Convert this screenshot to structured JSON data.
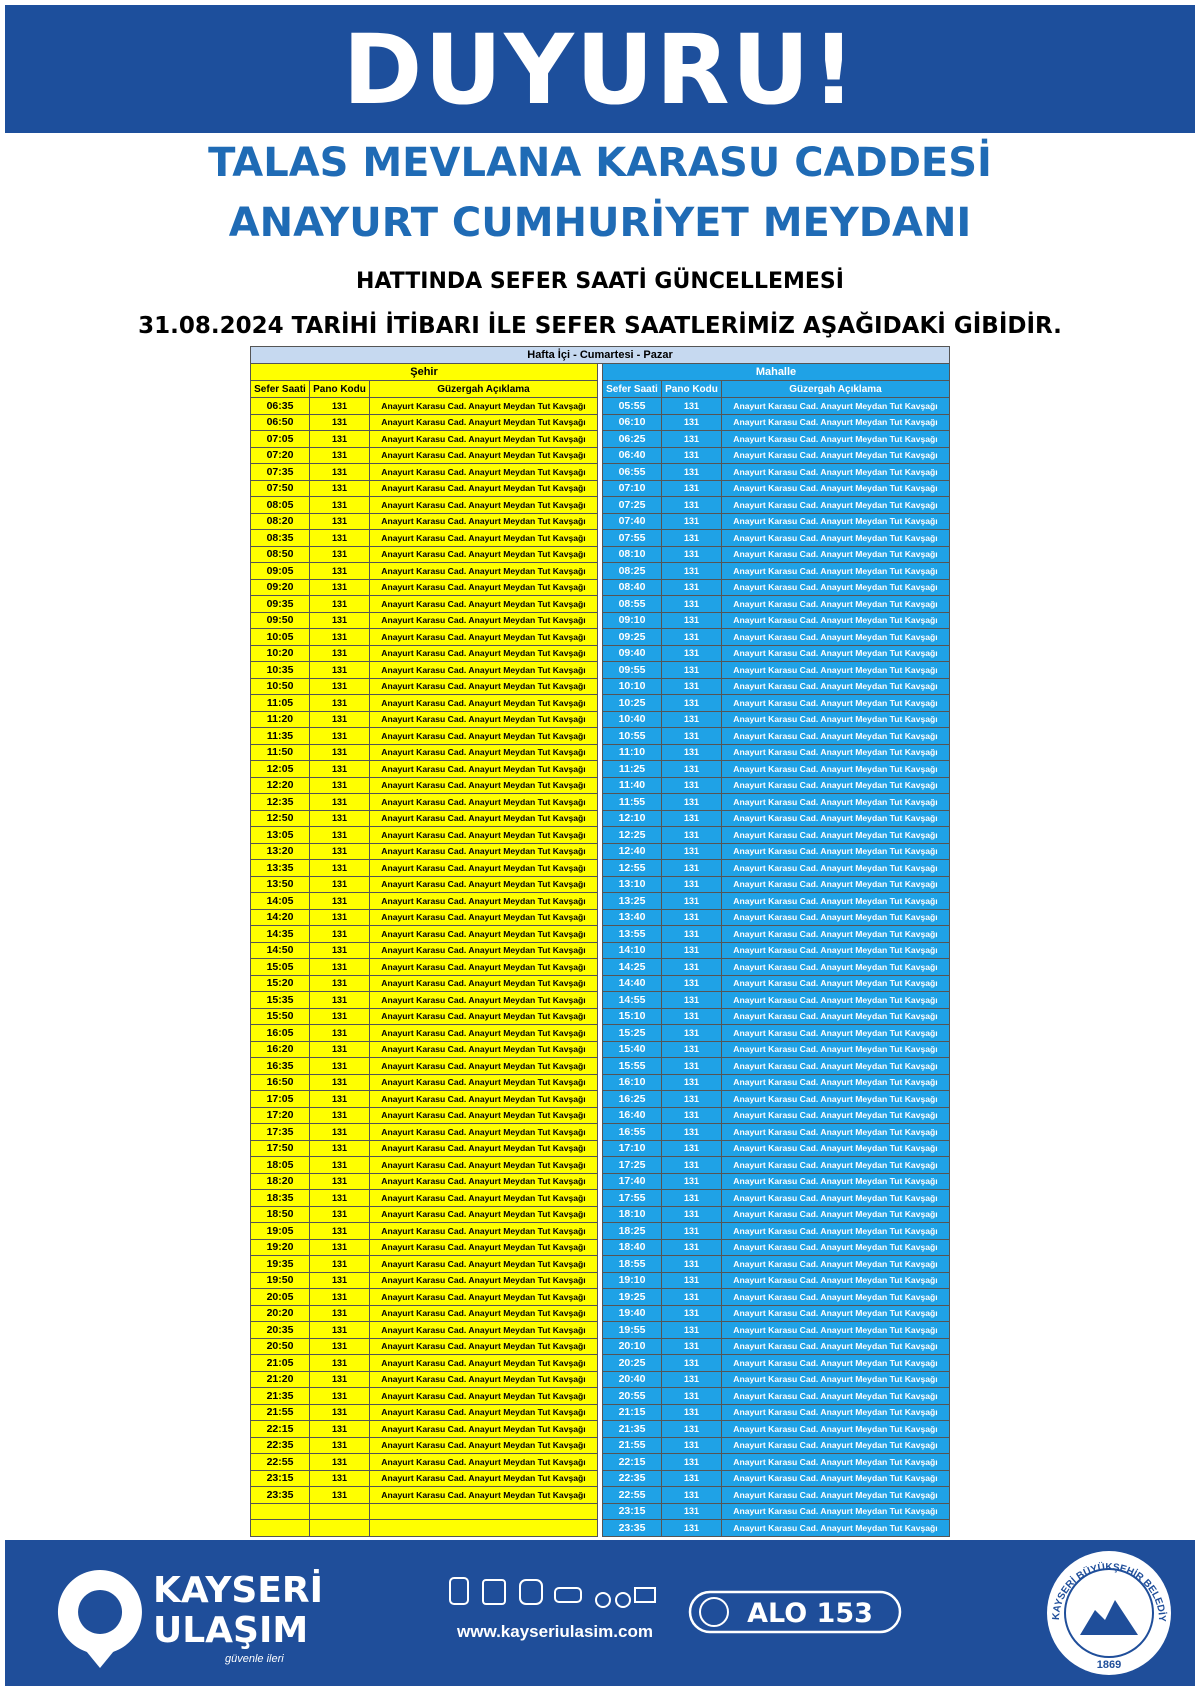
{
  "header": {
    "title": "DUYURU!"
  },
  "subtitle": {
    "line1": "TALAS MEVLANA KARASU CADDESİ",
    "line2": "ANAYURT CUMHURİYET MEYDANI",
    "line3": "HATTINDA SEFER SAATİ GÜNCELLEMESİ",
    "notice": "31.08.2024 TARİHİ İTİBARI İLE SEFER SAATLERİMİZ AŞAĞIDAKİ GİBİDİR."
  },
  "table": {
    "title": "Hafta İçi - Cumartesi - Pazar",
    "groups": [
      {
        "name": "Şehir",
        "columns": [
          "Sefer Saati",
          "Pano Kodu",
          "Güzergah Açıklama"
        ],
        "rows": [
          [
            "06:35",
            "131",
            "Anayurt Karasu Cad. Anayurt Meydan Tut Kavşağı"
          ],
          [
            "06:50",
            "131",
            "Anayurt Karasu Cad. Anayurt Meydan Tut Kavşağı"
          ],
          [
            "07:05",
            "131",
            "Anayurt Karasu Cad. Anayurt Meydan Tut Kavşağı"
          ],
          [
            "07:20",
            "131",
            "Anayurt Karasu Cad. Anayurt Meydan Tut Kavşağı"
          ],
          [
            "07:35",
            "131",
            "Anayurt Karasu Cad. Anayurt Meydan Tut Kavşağı"
          ],
          [
            "07:50",
            "131",
            "Anayurt Karasu Cad. Anayurt Meydan Tut Kavşağı"
          ],
          [
            "08:05",
            "131",
            "Anayurt Karasu Cad. Anayurt Meydan Tut Kavşağı"
          ],
          [
            "08:20",
            "131",
            "Anayurt Karasu Cad. Anayurt Meydan Tut Kavşağı"
          ],
          [
            "08:35",
            "131",
            "Anayurt Karasu Cad. Anayurt Meydan Tut Kavşağı"
          ],
          [
            "08:50",
            "131",
            "Anayurt Karasu Cad. Anayurt Meydan Tut Kavşağı"
          ],
          [
            "09:05",
            "131",
            "Anayurt Karasu Cad. Anayurt Meydan Tut Kavşağı"
          ],
          [
            "09:20",
            "131",
            "Anayurt Karasu Cad. Anayurt Meydan Tut Kavşağı"
          ],
          [
            "09:35",
            "131",
            "Anayurt Karasu Cad. Anayurt Meydan Tut Kavşağı"
          ],
          [
            "09:50",
            "131",
            "Anayurt Karasu Cad. Anayurt Meydan Tut Kavşağı"
          ],
          [
            "10:05",
            "131",
            "Anayurt Karasu Cad. Anayurt Meydan Tut Kavşağı"
          ],
          [
            "10:20",
            "131",
            "Anayurt Karasu Cad. Anayurt Meydan Tut Kavşağı"
          ],
          [
            "10:35",
            "131",
            "Anayurt Karasu Cad. Anayurt Meydan Tut Kavşağı"
          ],
          [
            "10:50",
            "131",
            "Anayurt Karasu Cad. Anayurt Meydan Tut Kavşağı"
          ],
          [
            "11:05",
            "131",
            "Anayurt Karasu Cad. Anayurt Meydan Tut Kavşağı"
          ],
          [
            "11:20",
            "131",
            "Anayurt Karasu Cad. Anayurt Meydan Tut Kavşağı"
          ],
          [
            "11:35",
            "131",
            "Anayurt Karasu Cad. Anayurt Meydan Tut Kavşağı"
          ],
          [
            "11:50",
            "131",
            "Anayurt Karasu Cad. Anayurt Meydan Tut Kavşağı"
          ],
          [
            "12:05",
            "131",
            "Anayurt Karasu Cad. Anayurt Meydan Tut Kavşağı"
          ],
          [
            "12:20",
            "131",
            "Anayurt Karasu Cad. Anayurt Meydan Tut Kavşağı"
          ],
          [
            "12:35",
            "131",
            "Anayurt Karasu Cad. Anayurt Meydan Tut Kavşağı"
          ],
          [
            "12:50",
            "131",
            "Anayurt Karasu Cad. Anayurt Meydan Tut Kavşağı"
          ],
          [
            "13:05",
            "131",
            "Anayurt Karasu Cad. Anayurt Meydan Tut Kavşağı"
          ],
          [
            "13:20",
            "131",
            "Anayurt Karasu Cad. Anayurt Meydan Tut Kavşağı"
          ],
          [
            "13:35",
            "131",
            "Anayurt Karasu Cad. Anayurt Meydan Tut Kavşağı"
          ],
          [
            "13:50",
            "131",
            "Anayurt Karasu Cad. Anayurt Meydan Tut Kavşağı"
          ],
          [
            "14:05",
            "131",
            "Anayurt Karasu Cad. Anayurt Meydan Tut Kavşağı"
          ],
          [
            "14:20",
            "131",
            "Anayurt Karasu Cad. Anayurt Meydan Tut Kavşağı"
          ],
          [
            "14:35",
            "131",
            "Anayurt Karasu Cad. Anayurt Meydan Tut Kavşağı"
          ],
          [
            "14:50",
            "131",
            "Anayurt Karasu Cad. Anayurt Meydan Tut Kavşağı"
          ],
          [
            "15:05",
            "131",
            "Anayurt Karasu Cad. Anayurt Meydan Tut Kavşağı"
          ],
          [
            "15:20",
            "131",
            "Anayurt Karasu Cad. Anayurt Meydan Tut Kavşağı"
          ],
          [
            "15:35",
            "131",
            "Anayurt Karasu Cad. Anayurt Meydan Tut Kavşağı"
          ],
          [
            "15:50",
            "131",
            "Anayurt Karasu Cad. Anayurt Meydan Tut Kavşağı"
          ],
          [
            "16:05",
            "131",
            "Anayurt Karasu Cad. Anayurt Meydan Tut Kavşağı"
          ],
          [
            "16:20",
            "131",
            "Anayurt Karasu Cad. Anayurt Meydan Tut Kavşağı"
          ],
          [
            "16:35",
            "131",
            "Anayurt Karasu Cad. Anayurt Meydan Tut Kavşağı"
          ],
          [
            "16:50",
            "131",
            "Anayurt Karasu Cad. Anayurt Meydan Tut Kavşağı"
          ],
          [
            "17:05",
            "131",
            "Anayurt Karasu Cad. Anayurt Meydan Tut Kavşağı"
          ],
          [
            "17:20",
            "131",
            "Anayurt Karasu Cad. Anayurt Meydan Tut Kavşağı"
          ],
          [
            "17:35",
            "131",
            "Anayurt Karasu Cad. Anayurt Meydan Tut Kavşağı"
          ],
          [
            "17:50",
            "131",
            "Anayurt Karasu Cad. Anayurt Meydan Tut Kavşağı"
          ],
          [
            "18:05",
            "131",
            "Anayurt Karasu Cad. Anayurt Meydan Tut Kavşağı"
          ],
          [
            "18:20",
            "131",
            "Anayurt Karasu Cad. Anayurt Meydan Tut Kavşağı"
          ],
          [
            "18:35",
            "131",
            "Anayurt Karasu Cad. Anayurt Meydan Tut Kavşağı"
          ],
          [
            "18:50",
            "131",
            "Anayurt Karasu Cad. Anayurt Meydan Tut Kavşağı"
          ],
          [
            "19:05",
            "131",
            "Anayurt Karasu Cad. Anayurt Meydan Tut Kavşağı"
          ],
          [
            "19:20",
            "131",
            "Anayurt Karasu Cad. Anayurt Meydan Tut Kavşağı"
          ],
          [
            "19:35",
            "131",
            "Anayurt Karasu Cad. Anayurt Meydan Tut Kavşağı"
          ],
          [
            "19:50",
            "131",
            "Anayurt Karasu Cad. Anayurt Meydan Tut Kavşağı"
          ],
          [
            "20:05",
            "131",
            "Anayurt Karasu Cad. Anayurt Meydan Tut Kavşağı"
          ],
          [
            "20:20",
            "131",
            "Anayurt Karasu Cad. Anayurt Meydan Tut Kavşağı"
          ],
          [
            "20:35",
            "131",
            "Anayurt Karasu Cad. Anayurt Meydan Tut Kavşağı"
          ],
          [
            "20:50",
            "131",
            "Anayurt Karasu Cad. Anayurt Meydan Tut Kavşağı"
          ],
          [
            "21:05",
            "131",
            "Anayurt Karasu Cad. Anayurt Meydan Tut Kavşağı"
          ],
          [
            "21:20",
            "131",
            "Anayurt Karasu Cad. Anayurt Meydan Tut Kavşağı"
          ],
          [
            "21:35",
            "131",
            "Anayurt Karasu Cad. Anayurt Meydan Tut Kavşağı"
          ],
          [
            "21:55",
            "131",
            "Anayurt Karasu Cad. Anayurt Meydan Tut Kavşağı"
          ],
          [
            "22:15",
            "131",
            "Anayurt Karasu Cad. Anayurt Meydan Tut Kavşağı"
          ],
          [
            "22:35",
            "131",
            "Anayurt Karasu Cad. Anayurt Meydan Tut Kavşağı"
          ],
          [
            "22:55",
            "131",
            "Anayurt Karasu Cad. Anayurt Meydan Tut Kavşağı"
          ],
          [
            "23:15",
            "131",
            "Anayurt Karasu Cad. Anayurt Meydan Tut Kavşağı"
          ],
          [
            "23:35",
            "131",
            "Anayurt Karasu Cad. Anayurt Meydan Tut Kavşağı"
          ]
        ]
      },
      {
        "name": "Mahalle",
        "columns": [
          "Sefer Saati",
          "Pano Kodu",
          "Güzergah Açıklama"
        ],
        "rows": [
          [
            "05:55",
            "131",
            "Anayurt Karasu Cad. Anayurt Meydan Tut Kavşağı"
          ],
          [
            "06:10",
            "131",
            "Anayurt Karasu Cad. Anayurt Meydan Tut Kavşağı"
          ],
          [
            "06:25",
            "131",
            "Anayurt Karasu Cad. Anayurt Meydan Tut Kavşağı"
          ],
          [
            "06:40",
            "131",
            "Anayurt Karasu Cad. Anayurt Meydan Tut Kavşağı"
          ],
          [
            "06:55",
            "131",
            "Anayurt Karasu Cad. Anayurt Meydan Tut Kavşağı"
          ],
          [
            "07:10",
            "131",
            "Anayurt Karasu Cad. Anayurt Meydan Tut Kavşağı"
          ],
          [
            "07:25",
            "131",
            "Anayurt Karasu Cad. Anayurt Meydan Tut Kavşağı"
          ],
          [
            "07:40",
            "131",
            "Anayurt Karasu Cad. Anayurt Meydan Tut Kavşağı"
          ],
          [
            "07:55",
            "131",
            "Anayurt Karasu Cad. Anayurt Meydan Tut Kavşağı"
          ],
          [
            "08:10",
            "131",
            "Anayurt Karasu Cad. Anayurt Meydan Tut Kavşağı"
          ],
          [
            "08:25",
            "131",
            "Anayurt Karasu Cad. Anayurt Meydan Tut Kavşağı"
          ],
          [
            "08:40",
            "131",
            "Anayurt Karasu Cad. Anayurt Meydan Tut Kavşağı"
          ],
          [
            "08:55",
            "131",
            "Anayurt Karasu Cad. Anayurt Meydan Tut Kavşağı"
          ],
          [
            "09:10",
            "131",
            "Anayurt Karasu Cad. Anayurt Meydan Tut Kavşağı"
          ],
          [
            "09:25",
            "131",
            "Anayurt Karasu Cad. Anayurt Meydan Tut Kavşağı"
          ],
          [
            "09:40",
            "131",
            "Anayurt Karasu Cad. Anayurt Meydan Tut Kavşağı"
          ],
          [
            "09:55",
            "131",
            "Anayurt Karasu Cad. Anayurt Meydan Tut Kavşağı"
          ],
          [
            "10:10",
            "131",
            "Anayurt Karasu Cad. Anayurt Meydan Tut Kavşağı"
          ],
          [
            "10:25",
            "131",
            "Anayurt Karasu Cad. Anayurt Meydan Tut Kavşağı"
          ],
          [
            "10:40",
            "131",
            "Anayurt Karasu Cad. Anayurt Meydan Tut Kavşağı"
          ],
          [
            "10:55",
            "131",
            "Anayurt Karasu Cad. Anayurt Meydan Tut Kavşağı"
          ],
          [
            "11:10",
            "131",
            "Anayurt Karasu Cad. Anayurt Meydan Tut Kavşağı"
          ],
          [
            "11:25",
            "131",
            "Anayurt Karasu Cad. Anayurt Meydan Tut Kavşağı"
          ],
          [
            "11:40",
            "131",
            "Anayurt Karasu Cad. Anayurt Meydan Tut Kavşağı"
          ],
          [
            "11:55",
            "131",
            "Anayurt Karasu Cad. Anayurt Meydan Tut Kavşağı"
          ],
          [
            "12:10",
            "131",
            "Anayurt Karasu Cad. Anayurt Meydan Tut Kavşağı"
          ],
          [
            "12:25",
            "131",
            "Anayurt Karasu Cad. Anayurt Meydan Tut Kavşağı"
          ],
          [
            "12:40",
            "131",
            "Anayurt Karasu Cad. Anayurt Meydan Tut Kavşağı"
          ],
          [
            "12:55",
            "131",
            "Anayurt Karasu Cad. Anayurt Meydan Tut Kavşağı"
          ],
          [
            "13:10",
            "131",
            "Anayurt Karasu Cad. Anayurt Meydan Tut Kavşağı"
          ],
          [
            "13:25",
            "131",
            "Anayurt Karasu Cad. Anayurt Meydan Tut Kavşağı"
          ],
          [
            "13:40",
            "131",
            "Anayurt Karasu Cad. Anayurt Meydan Tut Kavşağı"
          ],
          [
            "13:55",
            "131",
            "Anayurt Karasu Cad. Anayurt Meydan Tut Kavşağı"
          ],
          [
            "14:10",
            "131",
            "Anayurt Karasu Cad. Anayurt Meydan Tut Kavşağı"
          ],
          [
            "14:25",
            "131",
            "Anayurt Karasu Cad. Anayurt Meydan Tut Kavşağı"
          ],
          [
            "14:40",
            "131",
            "Anayurt Karasu Cad. Anayurt Meydan Tut Kavşağı"
          ],
          [
            "14:55",
            "131",
            "Anayurt Karasu Cad. Anayurt Meydan Tut Kavşağı"
          ],
          [
            "15:10",
            "131",
            "Anayurt Karasu Cad. Anayurt Meydan Tut Kavşağı"
          ],
          [
            "15:25",
            "131",
            "Anayurt Karasu Cad. Anayurt Meydan Tut Kavşağı"
          ],
          [
            "15:40",
            "131",
            "Anayurt Karasu Cad. Anayurt Meydan Tut Kavşağı"
          ],
          [
            "15:55",
            "131",
            "Anayurt Karasu Cad. Anayurt Meydan Tut Kavşağı"
          ],
          [
            "16:10",
            "131",
            "Anayurt Karasu Cad. Anayurt Meydan Tut Kavşağı"
          ],
          [
            "16:25",
            "131",
            "Anayurt Karasu Cad. Anayurt Meydan Tut Kavşağı"
          ],
          [
            "16:40",
            "131",
            "Anayurt Karasu Cad. Anayurt Meydan Tut Kavşağı"
          ],
          [
            "16:55",
            "131",
            "Anayurt Karasu Cad. Anayurt Meydan Tut Kavşağı"
          ],
          [
            "17:10",
            "131",
            "Anayurt Karasu Cad. Anayurt Meydan Tut Kavşağı"
          ],
          [
            "17:25",
            "131",
            "Anayurt Karasu Cad. Anayurt Meydan Tut Kavşağı"
          ],
          [
            "17:40",
            "131",
            "Anayurt Karasu Cad. Anayurt Meydan Tut Kavşağı"
          ],
          [
            "17:55",
            "131",
            "Anayurt Karasu Cad. Anayurt Meydan Tut Kavşağı"
          ],
          [
            "18:10",
            "131",
            "Anayurt Karasu Cad. Anayurt Meydan Tut Kavşağı"
          ],
          [
            "18:25",
            "131",
            "Anayurt Karasu Cad. Anayurt Meydan Tut Kavşağı"
          ],
          [
            "18:40",
            "131",
            "Anayurt Karasu Cad. Anayurt Meydan Tut Kavşağı"
          ],
          [
            "18:55",
            "131",
            "Anayurt Karasu Cad. Anayurt Meydan Tut Kavşağı"
          ],
          [
            "19:10",
            "131",
            "Anayurt Karasu Cad. Anayurt Meydan Tut Kavşağı"
          ],
          [
            "19:25",
            "131",
            "Anayurt Karasu Cad. Anayurt Meydan Tut Kavşağı"
          ],
          [
            "19:40",
            "131",
            "Anayurt Karasu Cad. Anayurt Meydan Tut Kavşağı"
          ],
          [
            "19:55",
            "131",
            "Anayurt Karasu Cad. Anayurt Meydan Tut Kavşağı"
          ],
          [
            "20:10",
            "131",
            "Anayurt Karasu Cad. Anayurt Meydan Tut Kavşağı"
          ],
          [
            "20:25",
            "131",
            "Anayurt Karasu Cad. Anayurt Meydan Tut Kavşağı"
          ],
          [
            "20:40",
            "131",
            "Anayurt Karasu Cad. Anayurt Meydan Tut Kavşağı"
          ],
          [
            "20:55",
            "131",
            "Anayurt Karasu Cad. Anayurt Meydan Tut Kavşağı"
          ],
          [
            "21:15",
            "131",
            "Anayurt Karasu Cad. Anayurt Meydan Tut Kavşağı"
          ],
          [
            "21:35",
            "131",
            "Anayurt Karasu Cad. Anayurt Meydan Tut Kavşağı"
          ],
          [
            "21:55",
            "131",
            "Anayurt Karasu Cad. Anayurt Meydan Tut Kavşağı"
          ],
          [
            "22:15",
            "131",
            "Anayurt Karasu Cad. Anayurt Meydan Tut Kavşağı"
          ],
          [
            "22:35",
            "131",
            "Anayurt Karasu Cad. Anayurt Meydan Tut Kavşağı"
          ],
          [
            "22:55",
            "131",
            "Anayurt Karasu Cad. Anayurt Meydan Tut Kavşağı"
          ],
          [
            "23:15",
            "131",
            "Anayurt Karasu Cad. Anayurt Meydan Tut Kavşağı"
          ],
          [
            "23:35",
            "131",
            "Anayurt Karasu Cad. Anayurt Meydan Tut Kavşağı"
          ]
        ]
      }
    ]
  },
  "footer": {
    "brand": "KAYSERİ",
    "brand2": "ULAŞIM",
    "slogan": "güvenle ileri",
    "website": "www.kayseriulasim.com",
    "hotline": "ALO 153",
    "seal": "KAYSERİ BÜYÜKŞEHİR BELEDİYESİ",
    "seal_year": "1869"
  }
}
